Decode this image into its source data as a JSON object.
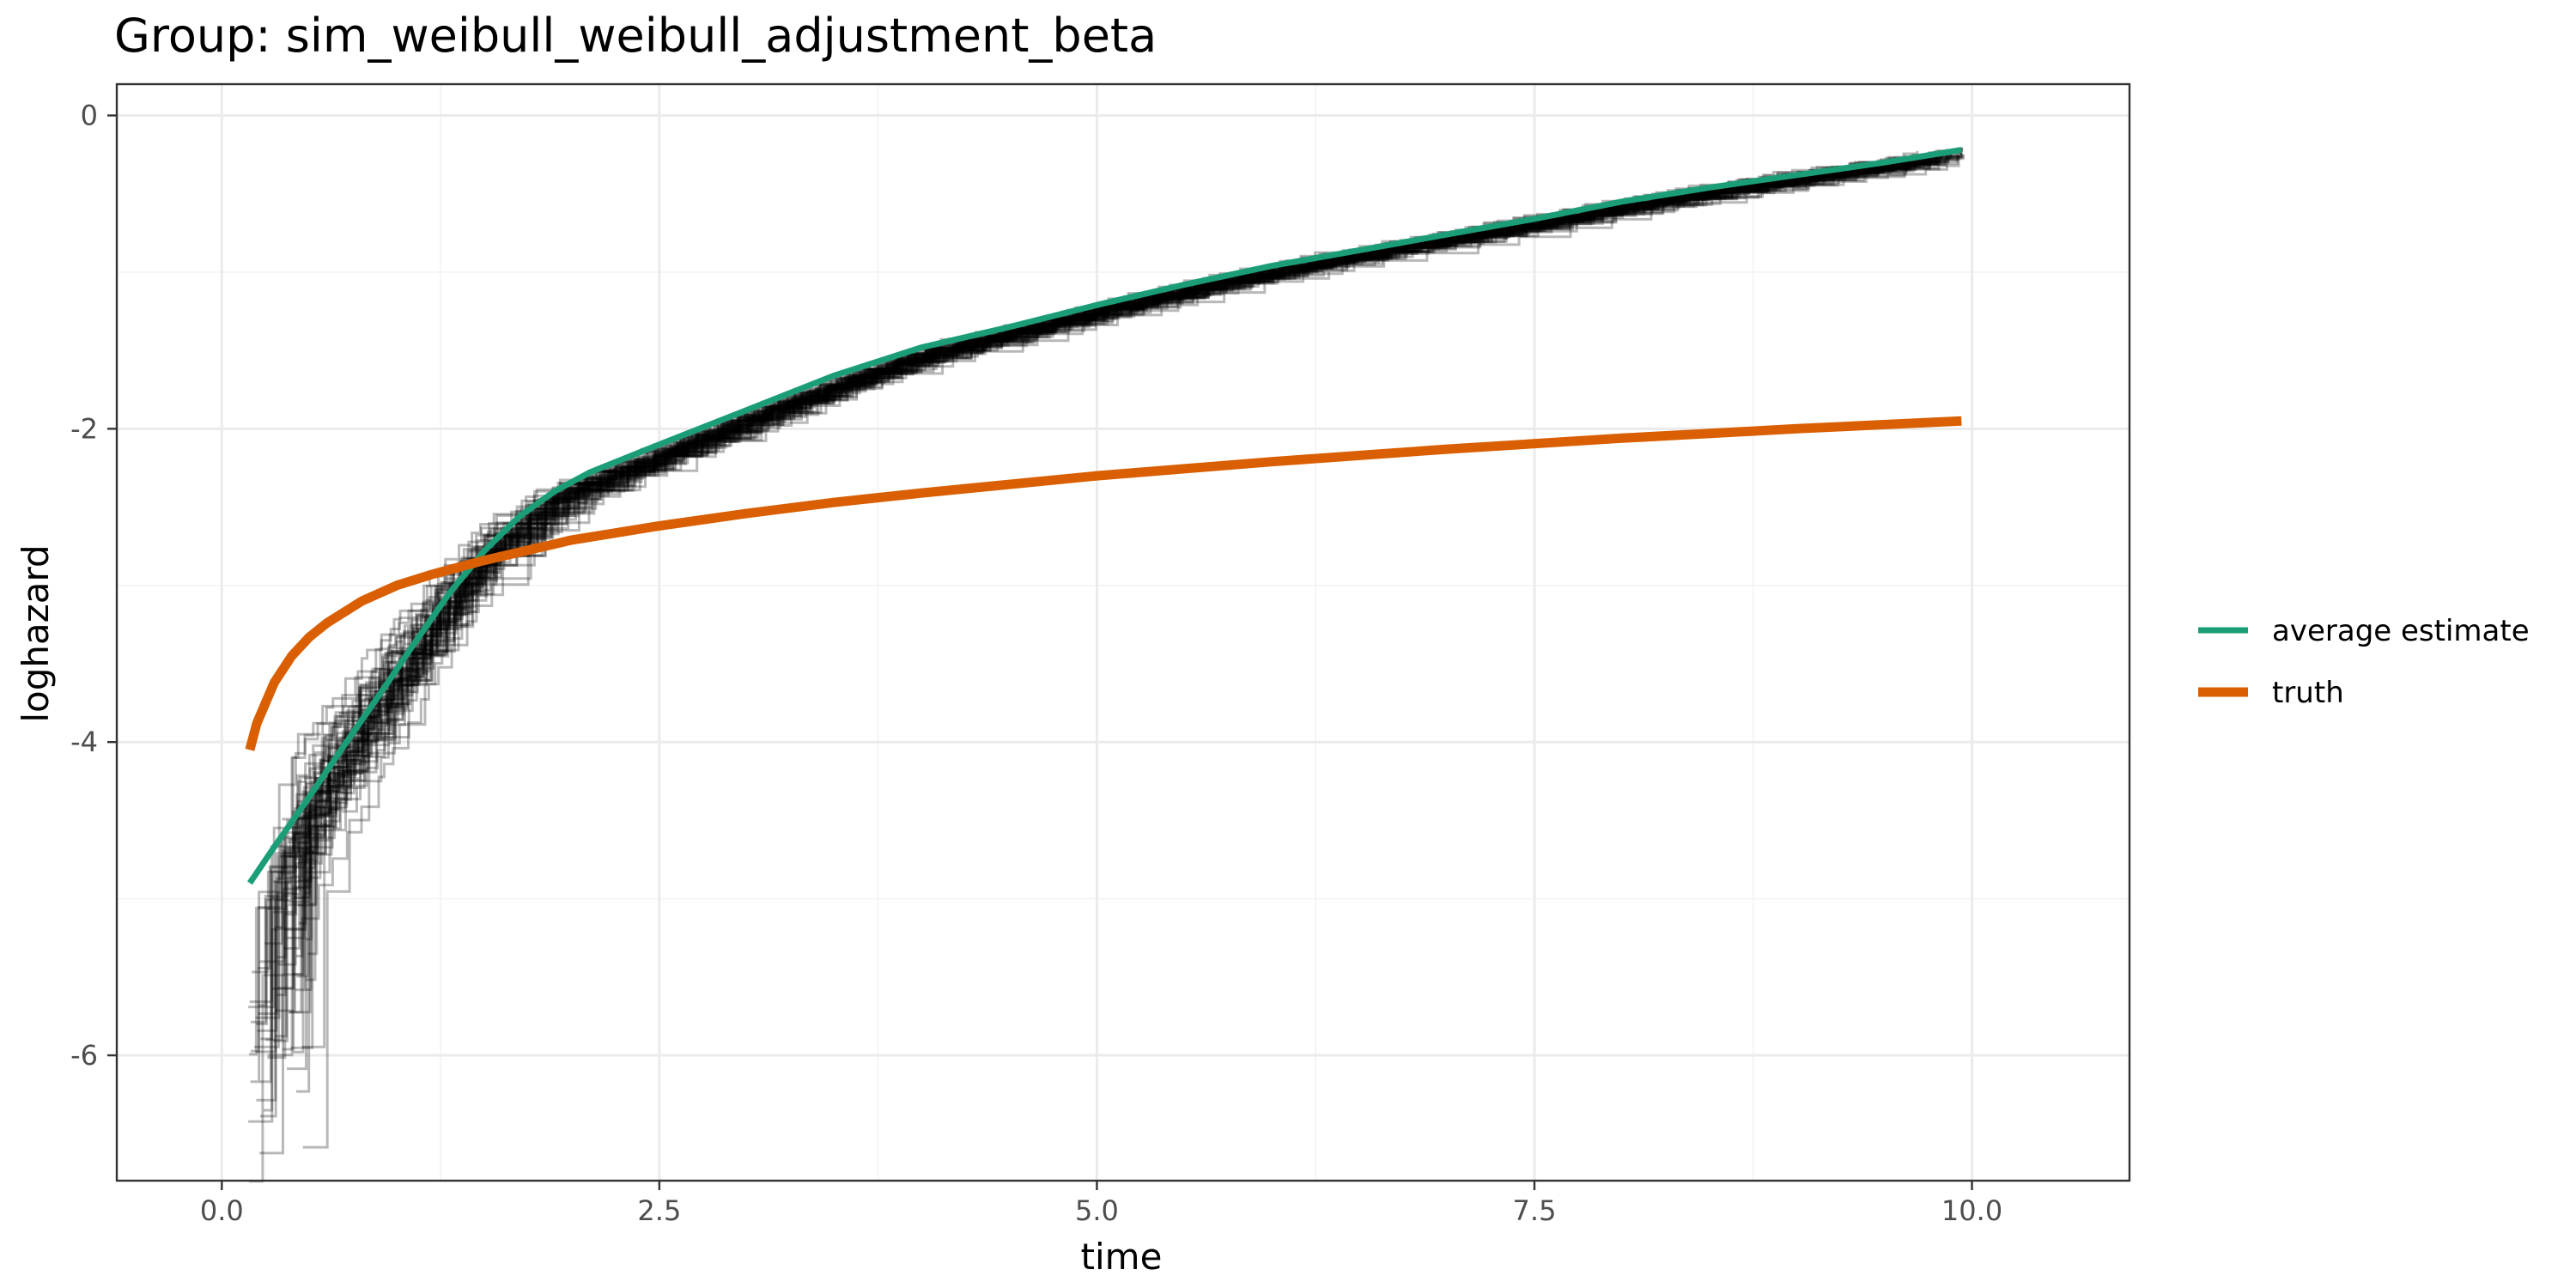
{
  "chart_data": {
    "type": "line",
    "title": "Group: sim_weibull_weibull_adjustment_beta",
    "xlabel": "time",
    "ylabel": "loghazard",
    "xlim": [
      -0.6,
      10.9
    ],
    "ylim": [
      -6.8,
      0.2
    ],
    "x_ticks": [
      {
        "value": 0,
        "label": "0.0"
      },
      {
        "value": 2.5,
        "label": "2.5"
      },
      {
        "value": 5,
        "label": "5.0"
      },
      {
        "value": 7.5,
        "label": "7.5"
      },
      {
        "value": 10,
        "label": "10.0"
      }
    ],
    "y_ticks": [
      {
        "value": 0,
        "label": "0"
      },
      {
        "value": -2,
        "label": "-2"
      },
      {
        "value": -4,
        "label": "-4"
      },
      {
        "value": -6,
        "label": "-6"
      }
    ],
    "grid": true,
    "legend_position": "right",
    "series": [
      {
        "name": "average estimate",
        "color": "#1b9e77",
        "x": [
          0.16,
          0.3,
          0.5,
          0.7,
          0.9,
          1.1,
          1.3,
          1.5,
          1.7,
          1.9,
          2.1,
          2.5,
          3.0,
          3.5,
          4.0,
          4.5,
          5.0,
          5.5,
          6.0,
          6.5,
          7.0,
          7.5,
          8.0,
          8.5,
          9.0,
          9.5,
          9.94
        ],
        "y": [
          -4.9,
          -4.67,
          -4.35,
          -4.02,
          -3.7,
          -3.37,
          -3.05,
          -2.78,
          -2.56,
          -2.4,
          -2.28,
          -2.1,
          -1.88,
          -1.66,
          -1.48,
          -1.35,
          -1.21,
          -1.08,
          -0.96,
          -0.86,
          -0.76,
          -0.66,
          -0.55,
          -0.46,
          -0.38,
          -0.3,
          -0.22
        ]
      },
      {
        "name": "truth",
        "color": "#d95f02",
        "x": [
          0.16,
          0.2,
          0.3,
          0.4,
          0.5,
          0.6,
          0.8,
          1.0,
          1.2,
          1.5,
          2.0,
          2.5,
          3.0,
          3.5,
          4.0,
          5.0,
          6.0,
          7.0,
          8.0,
          9.0,
          9.94
        ],
        "y": [
          -4.05,
          -3.88,
          -3.62,
          -3.45,
          -3.33,
          -3.24,
          -3.1,
          -3.0,
          -2.93,
          -2.84,
          -2.71,
          -2.62,
          -2.54,
          -2.47,
          -2.41,
          -2.3,
          -2.21,
          -2.13,
          -2.06,
          -2.0,
          -1.95
        ]
      }
    ],
    "replicates": {
      "description_count": 100,
      "color": "#000000"
    }
  }
}
